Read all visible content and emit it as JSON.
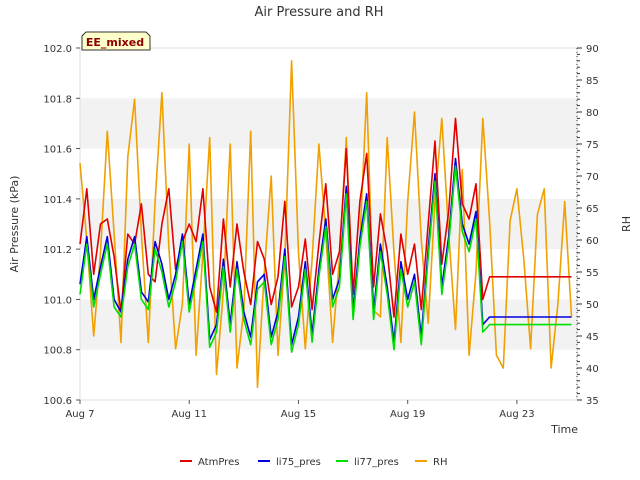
{
  "chart_data": {
    "type": "line",
    "title": "Air Pressure and RH",
    "xlabel": "Time",
    "ylabel_left": "Air Pressure (kPa)",
    "ylabel_right": "RH",
    "badge": "EE_mixed",
    "x_ticks": [
      {
        "day": 7,
        "label": "Aug 7"
      },
      {
        "day": 11,
        "label": "Aug 11"
      },
      {
        "day": 15,
        "label": "Aug 15"
      },
      {
        "day": 19,
        "label": "Aug 19"
      },
      {
        "day": 23,
        "label": "Aug 23"
      }
    ],
    "xlim_days": [
      7,
      25.2
    ],
    "ylim_left": [
      100.6,
      102.0
    ],
    "yticks_left": [
      "100.6",
      "100.8",
      "101.0",
      "101.2",
      "101.4",
      "101.6",
      "101.8",
      "102.0"
    ],
    "ylim_right": [
      35,
      90
    ],
    "yticks_right": [
      "35",
      "40",
      "45",
      "50",
      "55",
      "60",
      "65",
      "70",
      "75",
      "80",
      "85",
      "90"
    ],
    "grid": "horizontal bands",
    "legend_placement": "bottom",
    "series": [
      {
        "name": "AtmPres",
        "axis": "left",
        "color": "#e00000",
        "x": [
          7.0,
          7.25,
          7.5,
          7.75,
          8.0,
          8.25,
          8.5,
          8.75,
          9.0,
          9.25,
          9.5,
          9.75,
          10.0,
          10.25,
          10.5,
          10.75,
          11.0,
          11.25,
          11.5,
          11.75,
          12.0,
          12.25,
          12.5,
          12.75,
          13.0,
          13.25,
          13.5,
          13.75,
          14.0,
          14.25,
          14.5,
          14.75,
          15.0,
          15.25,
          15.5,
          15.75,
          16.0,
          16.25,
          16.5,
          16.75,
          17.0,
          17.25,
          17.5,
          17.75,
          18.0,
          18.25,
          18.5,
          18.75,
          19.0,
          19.25,
          19.5,
          19.75,
          20.0,
          20.25,
          20.5,
          20.75,
          21.0,
          21.25,
          21.5,
          21.75,
          22.0,
          22.25,
          22.5,
          22.75,
          23.0,
          23.25,
          23.5,
          23.75,
          24.0,
          24.25,
          24.5,
          24.75,
          25.0
        ],
        "y": [
          101.22,
          101.44,
          101.1,
          101.3,
          101.32,
          101.17,
          100.95,
          101.26,
          101.22,
          101.38,
          101.1,
          101.07,
          101.3,
          101.44,
          101.12,
          101.23,
          101.3,
          101.23,
          101.44,
          101.05,
          100.95,
          101.32,
          101.05,
          101.3,
          101.11,
          100.98,
          101.23,
          101.16,
          100.98,
          101.09,
          101.39,
          100.97,
          101.05,
          101.24,
          100.96,
          101.22,
          101.46,
          101.1,
          101.19,
          101.6,
          101.02,
          101.39,
          101.58,
          101.05,
          101.34,
          101.19,
          100.93,
          101.26,
          101.1,
          101.22,
          100.96,
          101.3,
          101.63,
          101.14,
          101.35,
          101.72,
          101.38,
          101.32,
          101.46,
          101.0,
          101.09,
          101.09,
          101.09,
          101.09,
          101.09,
          101.09,
          101.09,
          101.09,
          101.09,
          101.09,
          101.09,
          101.09,
          101.09
        ]
      },
      {
        "name": "li75_pres",
        "axis": "left",
        "color": "#0000dd",
        "x": [
          7.0,
          7.25,
          7.5,
          7.75,
          8.0,
          8.25,
          8.5,
          8.75,
          9.0,
          9.25,
          9.5,
          9.75,
          10.0,
          10.25,
          10.5,
          10.75,
          11.0,
          11.25,
          11.5,
          11.75,
          12.0,
          12.25,
          12.5,
          12.75,
          13.0,
          13.25,
          13.5,
          13.75,
          14.0,
          14.25,
          14.5,
          14.75,
          15.0,
          15.25,
          15.5,
          15.75,
          16.0,
          16.25,
          16.5,
          16.75,
          17.0,
          17.25,
          17.5,
          17.75,
          18.0,
          18.25,
          18.5,
          18.75,
          19.0,
          19.25,
          19.5,
          19.75,
          20.0,
          20.25,
          20.5,
          20.75,
          21.0,
          21.25,
          21.5,
          21.75,
          22.0,
          22.25,
          22.5,
          22.75,
          23.0,
          23.25,
          23.5,
          23.75,
          24.0,
          24.25,
          24.5,
          24.75,
          25.0
        ],
        "y": [
          101.06,
          101.25,
          101.0,
          101.13,
          101.25,
          101.0,
          100.95,
          101.16,
          101.25,
          101.03,
          100.99,
          101.23,
          101.14,
          101.0,
          101.1,
          101.26,
          100.98,
          101.12,
          101.26,
          100.84,
          100.9,
          101.16,
          100.9,
          101.15,
          100.95,
          100.85,
          101.07,
          101.1,
          100.85,
          100.95,
          101.2,
          100.82,
          100.93,
          101.15,
          100.86,
          101.12,
          101.32,
          101.0,
          101.08,
          101.45,
          100.95,
          101.24,
          101.42,
          100.95,
          101.22,
          101.05,
          100.83,
          101.15,
          101.0,
          101.1,
          100.85,
          101.2,
          101.5,
          101.05,
          101.25,
          101.56,
          101.3,
          101.22,
          101.35,
          100.9,
          100.93,
          100.93,
          100.93,
          100.93,
          100.93,
          100.93,
          100.93,
          100.93,
          100.93,
          100.93,
          100.93,
          100.93,
          100.93
        ]
      },
      {
        "name": "li77_pres",
        "axis": "left",
        "color": "#00dd00",
        "x": [
          7.0,
          7.25,
          7.5,
          7.75,
          8.0,
          8.25,
          8.5,
          8.75,
          9.0,
          9.25,
          9.5,
          9.75,
          10.0,
          10.25,
          10.5,
          10.75,
          11.0,
          11.25,
          11.5,
          11.75,
          12.0,
          12.25,
          12.5,
          12.75,
          13.0,
          13.25,
          13.5,
          13.75,
          14.0,
          14.25,
          14.5,
          14.75,
          15.0,
          15.25,
          15.5,
          15.75,
          16.0,
          16.25,
          16.5,
          16.75,
          17.0,
          17.25,
          17.5,
          17.75,
          18.0,
          18.25,
          18.5,
          18.75,
          19.0,
          19.25,
          19.5,
          19.75,
          20.0,
          20.25,
          20.5,
          20.75,
          21.0,
          21.25,
          21.5,
          21.75,
          22.0,
          22.25,
          22.5,
          22.75,
          23.0,
          23.25,
          23.5,
          23.75,
          24.0,
          24.25,
          24.5,
          24.75,
          25.0
        ],
        "y": [
          101.02,
          101.22,
          100.97,
          101.1,
          101.22,
          100.97,
          100.93,
          101.13,
          101.22,
          101.0,
          100.96,
          101.2,
          101.11,
          100.97,
          101.07,
          101.23,
          100.95,
          101.09,
          101.23,
          100.81,
          100.87,
          101.13,
          100.87,
          101.12,
          100.92,
          100.82,
          101.04,
          101.07,
          100.82,
          100.92,
          101.17,
          100.79,
          100.9,
          101.12,
          100.83,
          101.09,
          101.29,
          100.97,
          101.05,
          101.42,
          100.92,
          101.21,
          101.39,
          100.92,
          101.19,
          101.02,
          100.8,
          101.12,
          100.97,
          101.07,
          100.82,
          101.17,
          101.47,
          101.02,
          101.22,
          101.53,
          101.27,
          101.19,
          101.32,
          100.87,
          100.9,
          100.9,
          100.9,
          100.9,
          100.9,
          100.9,
          100.9,
          100.9,
          100.9,
          100.9,
          100.9,
          100.9,
          100.9
        ]
      },
      {
        "name": "RH",
        "axis": "right",
        "color": "#f0a000",
        "x": [
          7.0,
          7.25,
          7.5,
          7.75,
          8.0,
          8.25,
          8.5,
          8.75,
          9.0,
          9.25,
          9.5,
          9.75,
          10.0,
          10.25,
          10.5,
          10.75,
          11.0,
          11.25,
          11.5,
          11.75,
          12.0,
          12.25,
          12.5,
          12.75,
          13.0,
          13.25,
          13.5,
          13.75,
          14.0,
          14.25,
          14.5,
          14.75,
          15.0,
          15.25,
          15.5,
          15.75,
          16.0,
          16.25,
          16.5,
          16.75,
          17.0,
          17.25,
          17.5,
          17.75,
          18.0,
          18.25,
          18.5,
          18.75,
          19.0,
          19.25,
          19.5,
          19.75,
          20.0,
          20.25,
          20.5,
          20.75,
          21.0,
          21.25,
          21.5,
          21.75,
          22.0,
          22.25,
          22.5,
          22.75,
          23.0,
          23.25,
          23.5,
          23.75,
          24.0,
          24.25,
          24.5,
          24.75,
          25.0
        ],
        "y": [
          72,
          60,
          45,
          58,
          77,
          61,
          44,
          73,
          82,
          61,
          44,
          66,
          83,
          59,
          43,
          50,
          75,
          42,
          58,
          76,
          39,
          52,
          75,
          40,
          49,
          77,
          37,
          55,
          70,
          42,
          57,
          88,
          58,
          43,
          57,
          75,
          61,
          44,
          57,
          76,
          49,
          60,
          83,
          49,
          48,
          76,
          58,
          44,
          66,
          80,
          60,
          47,
          66,
          79,
          61,
          46,
          71,
          42,
          55,
          79,
          63,
          42,
          40,
          63,
          68,
          57,
          43,
          64,
          68,
          40,
          50,
          66,
          48
        ]
      }
    ]
  }
}
